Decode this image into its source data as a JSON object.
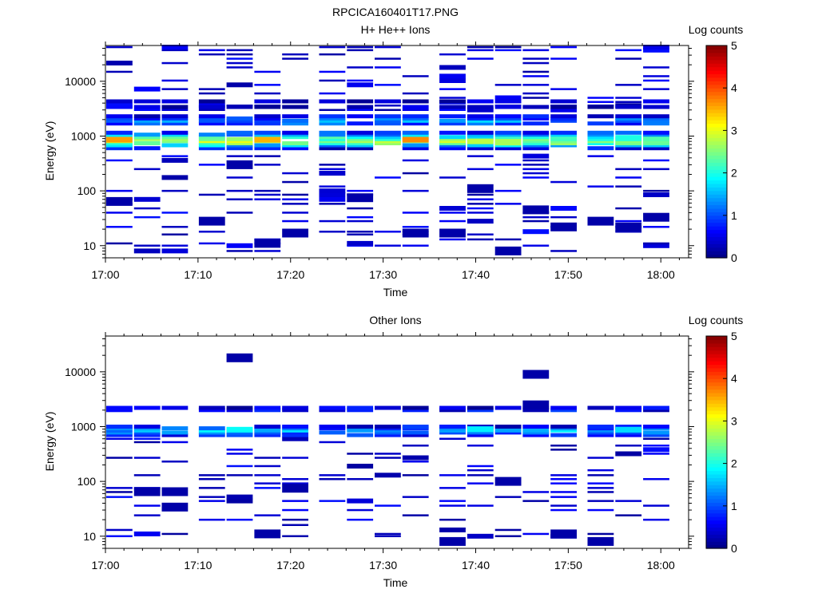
{
  "figure": {
    "title": "RPCICA160401T17.PNG"
  },
  "chart_data": [
    {
      "type": "heatmap",
      "title": "H+ He++ Ions",
      "xlabel": "Time",
      "ylabel": "Energy (eV)",
      "x_ticks": [
        "17:00",
        "17:10",
        "17:20",
        "17:30",
        "17:40",
        "17:50",
        "18:00"
      ],
      "y_ticks": [
        "10",
        "100",
        "1000",
        "10000"
      ],
      "y_scale": "log",
      "ylim": [
        6,
        45000
      ],
      "xlim": [
        "17:00",
        "18:03"
      ],
      "colorbar": {
        "label": "Log counts",
        "range": [
          0,
          5
        ],
        "ticks": [
          "0",
          "1",
          "2",
          "3",
          "4",
          "5"
        ]
      },
      "time_bins": [
        "17:00",
        "17:03",
        "17:06",
        "17:10",
        "17:13",
        "17:16",
        "17:19",
        "17:23",
        "17:26",
        "17:29",
        "17:32",
        "17:36",
        "17:39",
        "17:42",
        "17:45",
        "17:48",
        "17:52",
        "17:55",
        "17:58"
      ],
      "band": [
        [
          600,
          0.5
        ],
        [
          680,
          1.5
        ],
        [
          740,
          2.3
        ],
        [
          810,
          2.7
        ],
        [
          880,
          2.4
        ],
        [
          960,
          2.0
        ],
        [
          1060,
          1.4
        ],
        [
          1150,
          0.8
        ],
        [
          1700,
          0.9
        ],
        [
          1900,
          1.3
        ],
        [
          2100,
          1.0
        ],
        [
          2300,
          0.5
        ],
        [
          3400,
          0.3
        ],
        [
          4300,
          0.2
        ]
      ],
      "hot_spots": [
        [
          0,
          860,
          3.6
        ],
        [
          5,
          860,
          3.5
        ],
        [
          10,
          860,
          3.7
        ],
        [
          12,
          800,
          2.8
        ],
        [
          13,
          760,
          2.7
        ]
      ],
      "sparse_energies": [
        8,
        10,
        11,
        13,
        16,
        18,
        22,
        28,
        33,
        40,
        48,
        58,
        70,
        85,
        100,
        120,
        145,
        175,
        210,
        250,
        300,
        360,
        430,
        3000,
        3600,
        4200,
        5000,
        6000,
        7200,
        8600,
        10300,
        12400,
        14900,
        17900,
        21500,
        25800,
        31000,
        37000,
        42000
      ],
      "isolated": [
        [
          3,
          28
        ],
        [
          5,
          11
        ],
        [
          6,
          17
        ],
        [
          10,
          17
        ],
        [
          11,
          17
        ],
        [
          13,
          8
        ],
        [
          14,
          45
        ],
        [
          15,
          22
        ],
        [
          16,
          28
        ],
        [
          17,
          22
        ],
        [
          18,
          33
        ],
        [
          0,
          64
        ],
        [
          12,
          110
        ],
        [
          4,
          300
        ],
        [
          8,
          75
        ]
      ],
      "density": 0.32,
      "seed": 17
    },
    {
      "type": "heatmap",
      "title": "Other Ions",
      "xlabel": "Time",
      "ylabel": "Energy (eV)",
      "x_ticks": [
        "17:00",
        "17:10",
        "17:20",
        "17:30",
        "17:40",
        "17:50",
        "18:00"
      ],
      "y_ticks": [
        "10",
        "100",
        "1000",
        "10000"
      ],
      "y_scale": "log",
      "ylim": [
        6,
        45000
      ],
      "xlim": [
        "17:00",
        "18:03"
      ],
      "colorbar": {
        "label": "Log counts",
        "range": [
          0,
          5
        ],
        "ticks": [
          "0",
          "1",
          "2",
          "3",
          "4",
          "5"
        ]
      },
      "time_bins": [
        "17:00",
        "17:03",
        "17:06",
        "17:10",
        "17:13",
        "17:16",
        "17:19",
        "17:23",
        "17:26",
        "17:29",
        "17:32",
        "17:36",
        "17:39",
        "17:42",
        "17:45",
        "17:48",
        "17:52",
        "17:55",
        "17:58"
      ],
      "band": [
        [
          700,
          0.7
        ],
        [
          780,
          1.1
        ],
        [
          850,
          1.5
        ],
        [
          930,
          1.1
        ],
        [
          1000,
          0.6
        ],
        [
          2000,
          0.6
        ],
        [
          2200,
          0.4
        ]
      ],
      "hot_spots": [
        [
          4,
          880,
          1.9
        ],
        [
          12,
          900,
          1.8
        ],
        [
          17,
          880,
          1.7
        ]
      ],
      "sparse_energies": [
        10,
        11,
        13,
        16,
        20,
        24,
        30,
        36,
        44,
        52,
        64,
        76,
        92,
        110,
        130,
        160,
        190,
        230,
        270,
        320,
        380,
        450,
        520,
        600
      ],
      "isolated": [
        [
          5,
          11
        ],
        [
          11,
          8
        ],
        [
          15,
          11
        ],
        [
          16,
          8
        ],
        [
          4,
          18000
        ],
        [
          14,
          9000
        ],
        [
          14,
          2500
        ],
        [
          13,
          100
        ],
        [
          1,
          65
        ],
        [
          2,
          65
        ],
        [
          2,
          34
        ],
        [
          6,
          75
        ]
      ],
      "density": 0.26,
      "seed": 41
    }
  ]
}
